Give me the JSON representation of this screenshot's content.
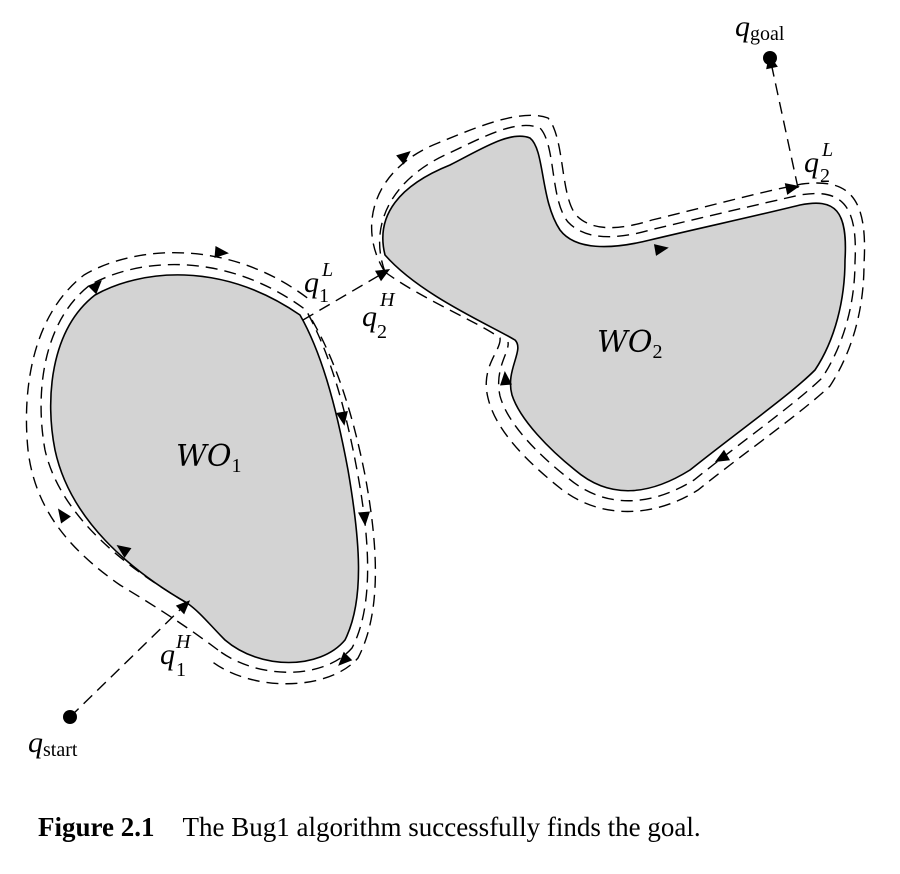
{
  "labels": {
    "q_start": {
      "base": "q",
      "sub": "start"
    },
    "q_goal": {
      "base": "q",
      "sub": "goal"
    },
    "q1_H": {
      "base": "q",
      "sub": "1",
      "sup": "H"
    },
    "q1_L": {
      "base": "q",
      "sub": "1",
      "sup": "L"
    },
    "q2_H": {
      "base": "q",
      "sub": "2",
      "sup": "H"
    },
    "q2_L": {
      "base": "q",
      "sub": "2",
      "sup": "L"
    },
    "wo1": {
      "base": "WO",
      "sub": "1"
    },
    "wo2": {
      "base": "WO",
      "sub": "2"
    }
  },
  "caption": {
    "figure_label": "Figure 2.1",
    "text": "The Bug1 algorithm successfully finds the goal."
  }
}
